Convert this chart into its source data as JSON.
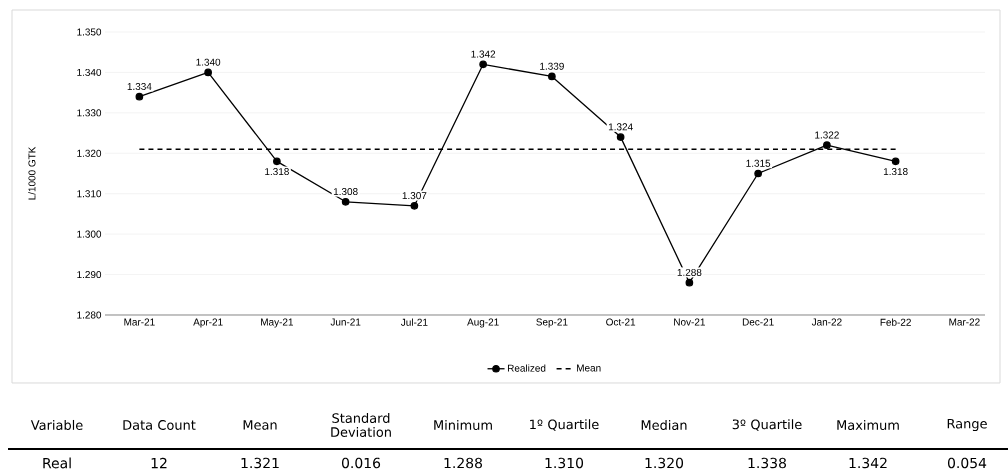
{
  "chart_data": {
    "type": "line",
    "ylabel": "L/1000 GTK",
    "categories": [
      "Mar-21",
      "Apr-21",
      "May-21",
      "Jun-21",
      "Jul-21",
      "Aug-21",
      "Sep-21",
      "Oct-21",
      "Nov-21",
      "Dec-21",
      "Jan-22",
      "Feb-22",
      "Mar-22"
    ],
    "series": [
      {
        "name": "Realized",
        "color": "#000000",
        "marker": "circle",
        "line_style": "solid",
        "values": [
          1.334,
          1.34,
          1.318,
          1.308,
          1.307,
          1.342,
          1.339,
          1.324,
          1.288,
          1.315,
          1.322,
          1.318,
          null
        ],
        "value_labels": [
          "1.334",
          "1.340",
          "1.318",
          "1.308",
          "1.307",
          "1.342",
          "1.339",
          "1.324",
          "1.288",
          "1.315",
          "1.322",
          "1.318",
          null
        ]
      },
      {
        "name": "Mean",
        "color": "#000000",
        "marker": "none",
        "line_style": "dashed",
        "values": [
          1.321,
          1.321,
          1.321,
          1.321,
          1.321,
          1.321,
          1.321,
          1.321,
          1.321,
          1.321,
          1.321,
          1.321,
          null
        ]
      }
    ],
    "ylim": [
      1.28,
      1.35
    ],
    "yticks": [
      {
        "value": 1.28,
        "label": "1.280"
      },
      {
        "value": 1.29,
        "label": "1.290"
      },
      {
        "value": 1.3,
        "label": "1.300"
      },
      {
        "value": 1.31,
        "label": "1.310"
      },
      {
        "value": 1.32,
        "label": "1.320"
      },
      {
        "value": 1.33,
        "label": "1.330"
      },
      {
        "value": 1.34,
        "label": "1.340"
      },
      {
        "value": 1.35,
        "label": "1.350"
      }
    ],
    "grid": "y",
    "legend": "bottom",
    "annotations": [
      "Variable",
      "Data Count",
      "Mean",
      "Standard Deviation",
      "Minimum",
      "1º Quartile",
      "Median",
      "3º Quartile",
      "Maximum",
      "Range",
      "Real",
      "12",
      "1.321",
      "0.016",
      "1.288",
      "1.310",
      "1.320",
      "1.338",
      "1.342",
      "0.054"
    ]
  }
}
